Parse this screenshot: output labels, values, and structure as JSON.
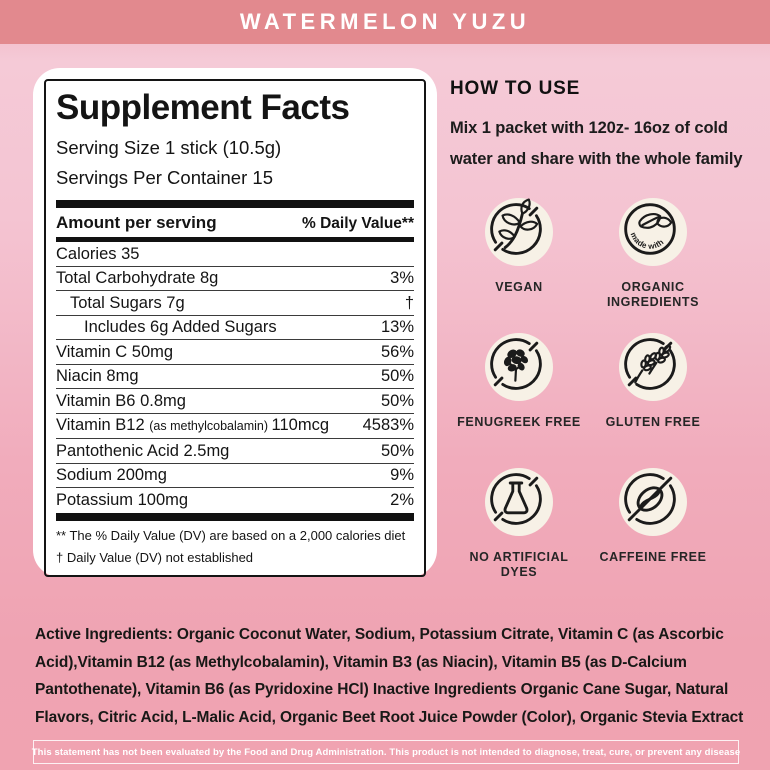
{
  "header": {
    "title": "WATERMELON YUZU"
  },
  "supplement_facts": {
    "title": "Supplement Facts",
    "serving_size": "Serving Size 1 stick (10.5g)",
    "servings_per_container": "Servings Per Container 15",
    "columns": {
      "amount": "Amount per serving",
      "daily_value": "% Daily Value**"
    },
    "rows": [
      {
        "label": "Calories 35",
        "value": "",
        "indent": 0
      },
      {
        "label": "Total Carbohydrate 8g",
        "value": "3%",
        "indent": 0
      },
      {
        "label": "Total Sugars 7g",
        "value": "†",
        "indent": 1
      },
      {
        "label": "Includes 6g Added Sugars",
        "value": "13%",
        "indent": 2
      },
      {
        "label": "Vitamin C 50mg",
        "value": "56%",
        "indent": 0
      },
      {
        "label": "Niacin 8mg",
        "value": "50%",
        "indent": 0
      },
      {
        "label": "Vitamin B6 0.8mg",
        "value": "50%",
        "indent": 0
      },
      {
        "label_parts": [
          {
            "text": "Vitamin B12 "
          },
          {
            "text": "(as methylcobalamin) ",
            "small": true
          },
          {
            "text": "110mcg"
          }
        ],
        "value": "4583%",
        "indent": 0
      },
      {
        "label": "Pantothenic Acid 2.5mg",
        "value": "50%",
        "indent": 0
      },
      {
        "label": "Sodium 200mg",
        "value": "9%",
        "indent": 0
      },
      {
        "label": "Potassium 100mg",
        "value": "2%",
        "indent": 0
      }
    ],
    "footnotes": [
      "** The % Daily Value (DV) are based on a  2,000 calories diet",
      "† Daily Value (DV) not established"
    ]
  },
  "how_to_use": {
    "title": "HOW TO USE",
    "body": "Mix 1 packet with 120z- 16oz of cold water and share with the whole family"
  },
  "badges": [
    {
      "label": "VEGAN",
      "icon": "vegan-plant-icon"
    },
    {
      "label": "ORGANIC INGREDIENTS",
      "icon": "organic-leaves-icon",
      "inner_text": "made with"
    },
    {
      "label": "FENUGREEK FREE",
      "icon": "no-fenugreek-icon"
    },
    {
      "label": "GLUTEN FREE",
      "icon": "no-gluten-wheat-icon"
    },
    {
      "label": "NO ARTIFICIAL DYES",
      "icon": "no-dyes-flask-icon"
    },
    {
      "label": "CAFFEINE FREE",
      "icon": "no-caffeine-bean-icon"
    }
  ],
  "ingredients": {
    "text": "Active Ingredients: Organic Coconut Water, Sodium, Potassium Citrate, Vitamin C (as Ascorbic Acid),Vitamin B12 (as Methylcobalamin), Vitamin B3 (as Niacin), Vitamin B5 (as D-Calcium Pantothenate), Vitamin B6 (as Pyridoxine HCl) Inactive Ingredients Organic Cane Sugar, Natural Flavors, Citric Acid, L-Malic Acid, Organic Beet Root Juice Powder (Color), Organic Stevia Extract"
  },
  "disclaimer": {
    "text": "This statement has not been evaluated by the Food and Drug Administration. This product is not intended to diagnose, treat, cure, or prevent any disease"
  },
  "colors": {
    "banner": "#e2898e",
    "background_light": "#f5cad7",
    "background_deep": "#efa3b2",
    "panel": "#ffffff",
    "ink": "#141414",
    "badge_circle": "#f7f1e6"
  }
}
